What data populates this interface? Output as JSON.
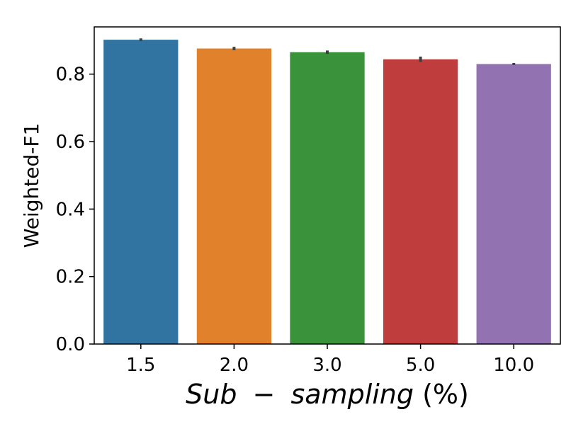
{
  "chart_data": {
    "type": "bar",
    "title": "",
    "xlabel_parts": [
      "Sub",
      "−",
      "sampling",
      "(%)"
    ],
    "ylabel": "Weighted-F1",
    "categories": [
      "1.5",
      "2.0",
      "3.0",
      "5.0",
      "10.0"
    ],
    "values": [
      0.902,
      0.876,
      0.865,
      0.844,
      0.83
    ],
    "errors": [
      0.004,
      0.005,
      0.005,
      0.008,
      0.003
    ],
    "colors": [
      "#3274a1",
      "#e1812c",
      "#3a923a",
      "#c03d3e",
      "#9372b2"
    ],
    "ylim": [
      0.0,
      0.94
    ],
    "yticks": [
      0.0,
      0.2,
      0.4,
      0.6,
      0.8
    ],
    "ytick_labels": [
      "0.0",
      "0.2",
      "0.4",
      "0.6",
      "0.8"
    ],
    "grid": false
  }
}
